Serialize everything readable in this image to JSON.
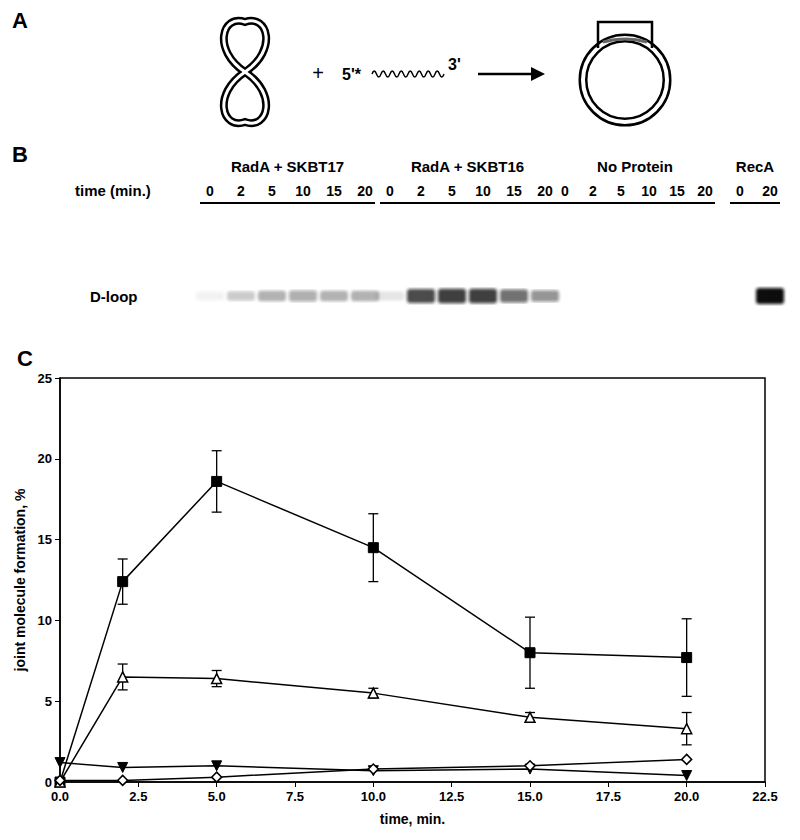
{
  "panel_a": {
    "label": "A",
    "plus": "+",
    "probe_5": "5'*",
    "probe_3": "3'"
  },
  "panel_b": {
    "label": "B",
    "time_label": "time (min.)",
    "band_label": "D-loop",
    "groups": [
      {
        "name": "RadA + SKBT17",
        "times": [
          0,
          2,
          5,
          10,
          15,
          20
        ],
        "intensity": [
          0.05,
          0.2,
          0.3,
          0.35,
          0.3,
          0.3
        ]
      },
      {
        "name": "RadA + SKBT16",
        "times": [
          0,
          2,
          5,
          10,
          15,
          20
        ],
        "intensity": [
          0.1,
          0.75,
          0.8,
          0.8,
          0.6,
          0.45
        ]
      },
      {
        "name": "No Protein",
        "times": [
          0,
          2,
          5,
          10,
          15,
          20
        ],
        "intensity": [
          0,
          0,
          0,
          0,
          0,
          0
        ]
      },
      {
        "name": "RecA",
        "times": [
          0,
          20
        ],
        "intensity": [
          0,
          1
        ]
      }
    ]
  },
  "chart_data": {
    "type": "line",
    "title": "C",
    "x_label": "time, min.",
    "y_label": "joint molecule formation, %",
    "x": [
      0,
      2,
      5,
      10,
      15,
      20
    ],
    "xlim": [
      0,
      22.5
    ],
    "xticks": [
      {
        "value": 0,
        "label": "0.0"
      },
      2.5,
      {
        "value": 5,
        "label": "5.0"
      },
      7.5,
      {
        "value": 10,
        "label": "10.0"
      },
      12.5,
      {
        "value": 15,
        "label": "15.0"
      },
      17.5,
      {
        "value": 20,
        "label": "20.0"
      },
      22.5
    ],
    "ylim": [
      0,
      25
    ],
    "yticks": [
      0,
      5,
      10,
      15,
      20,
      25
    ],
    "grid": false,
    "series": [
      {
        "color": "#000000",
        "marker": "square",
        "line_style": "solid",
        "values": [
          0,
          12.4,
          18.6,
          14.5,
          8.0,
          7.7
        ],
        "errors": [
          null,
          1.4,
          1.9,
          2.1,
          2.2,
          2.4
        ]
      },
      {
        "color": "#000000",
        "marker": "triangle-open",
        "line_style": "solid",
        "values": [
          0,
          6.5,
          6.4,
          5.5,
          4.0,
          3.3
        ],
        "errors": [
          null,
          0.8,
          0.5,
          0.3,
          0.3,
          1.0
        ]
      },
      {
        "color": "#000000",
        "marker": "triangle-down",
        "line_style": "solid",
        "values": [
          1.2,
          0.9,
          1.0,
          0.7,
          0.8,
          0.4
        ]
      },
      {
        "color": "#000000",
        "marker": "diamond-open",
        "line_style": "solid",
        "values": [
          0.1,
          0.1,
          0.3,
          0.8,
          1.0,
          1.4
        ]
      }
    ]
  }
}
